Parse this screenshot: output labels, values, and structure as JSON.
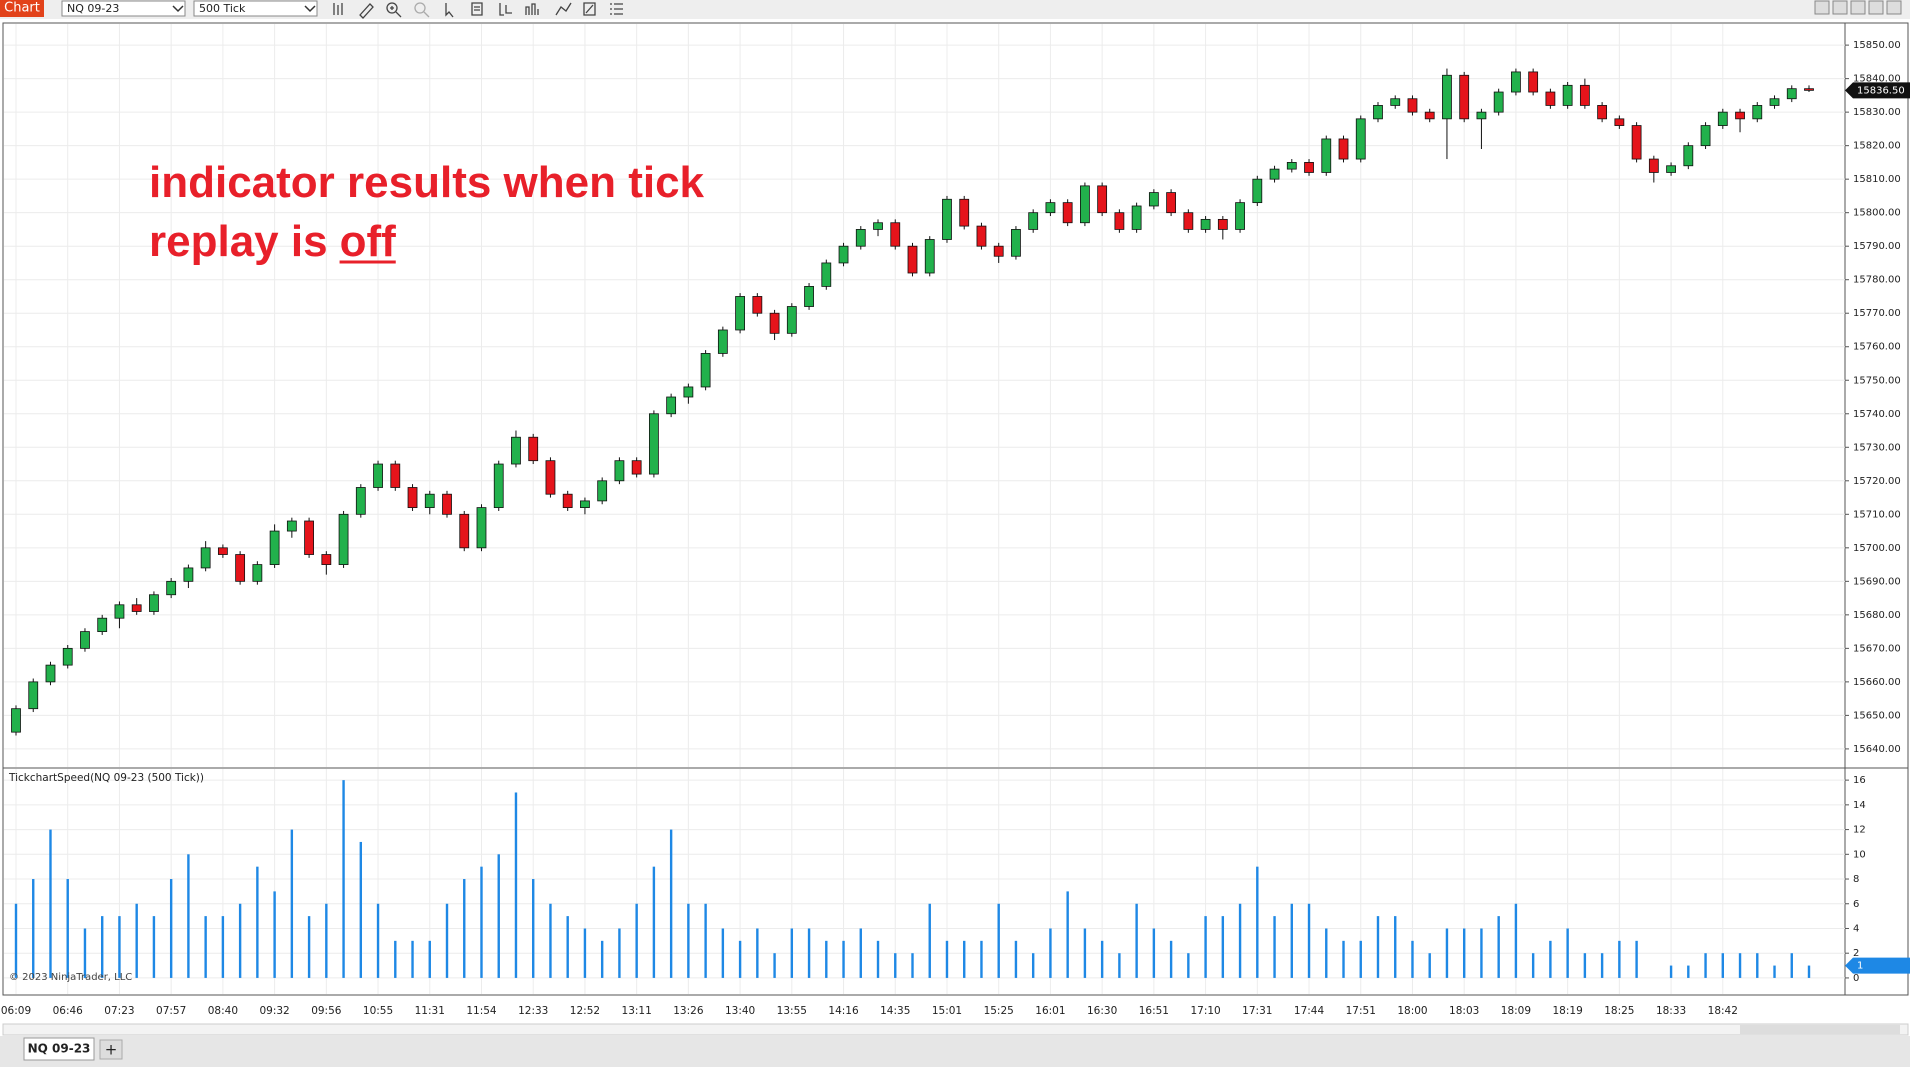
{
  "toolbar": {
    "title": "Chart",
    "instrument": "NQ 09-23",
    "interval": "500 Tick"
  },
  "chart_data": [
    {
      "type": "candlestick",
      "annotation": [
        "indicator results when tick",
        "replay is",
        "off"
      ],
      "categories": [
        "06:09",
        null,
        null,
        "06:46",
        null,
        null,
        "07:23",
        null,
        null,
        "07:57",
        null,
        null,
        "08:40",
        null,
        null,
        "09:32",
        null,
        null,
        "09:56",
        null,
        null,
        "10:55",
        null,
        null,
        "11:31",
        null,
        null,
        "11:54",
        null,
        null,
        "12:33",
        null,
        null,
        "12:52",
        null,
        null,
        "13:11",
        null,
        null,
        "13:26",
        null,
        null,
        "13:40",
        null,
        null,
        "13:55",
        null,
        null,
        "14:16",
        null,
        null,
        "14:35",
        null,
        null,
        "15:01",
        null,
        null,
        "15:25",
        null,
        null,
        "16:01",
        null,
        null,
        "16:30",
        null,
        null,
        "16:51",
        null,
        null,
        "17:10",
        null,
        null,
        "17:31",
        null,
        null,
        "17:44",
        null,
        null,
        "17:51",
        null,
        null,
        "18:00",
        null,
        null,
        "18:03",
        null,
        null,
        "18:09",
        null,
        null,
        "18:19",
        null,
        null,
        "18:25",
        null,
        null,
        "18:33",
        null,
        null,
        "18:42",
        null,
        null,
        null,
        null,
        null
      ],
      "candles": [
        [
          15645,
          15653,
          15644,
          15652
        ],
        [
          15652,
          15661,
          15651,
          15660
        ],
        [
          15660,
          15666,
          15659,
          15665
        ],
        [
          15665,
          15671,
          15664,
          15670
        ],
        [
          15670,
          15676,
          15669,
          15675
        ],
        [
          15675,
          15680,
          15674,
          15679
        ],
        [
          15679,
          15684,
          15676,
          15683
        ],
        [
          15683,
          15685,
          15680,
          15681
        ],
        [
          15681,
          15687,
          15680,
          15686
        ],
        [
          15686,
          15691,
          15685,
          15690
        ],
        [
          15690,
          15695,
          15688,
          15694
        ],
        [
          15694,
          15702,
          15693,
          15700
        ],
        [
          15700,
          15701,
          15697,
          15698
        ],
        [
          15698,
          15699,
          15689,
          15690
        ],
        [
          15690,
          15696,
          15689,
          15695
        ],
        [
          15695,
          15707,
          15694,
          15705
        ],
        [
          15705,
          15709,
          15703,
          15708
        ],
        [
          15708,
          15709,
          15697,
          15698
        ],
        [
          15698,
          15699,
          15692,
          15695
        ],
        [
          15695,
          15711,
          15694,
          15710
        ],
        [
          15710,
          15719,
          15709,
          15718
        ],
        [
          15718,
          15726,
          15717,
          15725
        ],
        [
          15725,
          15726,
          15717,
          15718
        ],
        [
          15718,
          15719,
          15711,
          15712
        ],
        [
          15712,
          15717,
          15710,
          15716
        ],
        [
          15716,
          15717,
          15709,
          15710
        ],
        [
          15710,
          15711,
          15699,
          15700
        ],
        [
          15700,
          15713,
          15699,
          15712
        ],
        [
          15712,
          15726,
          15711,
          15725
        ],
        [
          15725,
          15735,
          15724,
          15733
        ],
        [
          15733,
          15734,
          15725,
          15726
        ],
        [
          15726,
          15727,
          15715,
          15716
        ],
        [
          15716,
          15717,
          15711,
          15712
        ],
        [
          15712,
          15715,
          15710,
          15714
        ],
        [
          15714,
          15721,
          15713,
          15720
        ],
        [
          15720,
          15727,
          15719,
          15726
        ],
        [
          15726,
          15727,
          15721,
          15722
        ],
        [
          15722,
          15741,
          15721,
          15740
        ],
        [
          15740,
          15746,
          15739,
          15745
        ],
        [
          15745,
          15749,
          15743,
          15748
        ],
        [
          15748,
          15759,
          15747,
          15758
        ],
        [
          15758,
          15766,
          15757,
          15765
        ],
        [
          15765,
          15776,
          15764,
          15775
        ],
        [
          15775,
          15776,
          15769,
          15770
        ],
        [
          15770,
          15771,
          15762,
          15764
        ],
        [
          15764,
          15773,
          15763,
          15772
        ],
        [
          15772,
          15779,
          15771,
          15778
        ],
        [
          15778,
          15786,
          15777,
          15785
        ],
        [
          15785,
          15791,
          15784,
          15790
        ],
        [
          15790,
          15796,
          15789,
          15795
        ],
        [
          15795,
          15798,
          15793,
          15797
        ],
        [
          15797,
          15798,
          15789,
          15790
        ],
        [
          15790,
          15791,
          15781,
          15782
        ],
        [
          15782,
          15793,
          15781,
          15792
        ],
        [
          15792,
          15805,
          15791,
          15804
        ],
        [
          15804,
          15805,
          15795,
          15796
        ],
        [
          15796,
          15797,
          15789,
          15790
        ],
        [
          15790,
          15791,
          15785,
          15787
        ],
        [
          15787,
          15796,
          15786,
          15795
        ],
        [
          15795,
          15801,
          15794,
          15800
        ],
        [
          15800,
          15804,
          15799,
          15803
        ],
        [
          15803,
          15804,
          15796,
          15797
        ],
        [
          15797,
          15809,
          15796,
          15808
        ],
        [
          15808,
          15809,
          15799,
          15800
        ],
        [
          15800,
          15801,
          15794,
          15795
        ],
        [
          15795,
          15803,
          15794,
          15802
        ],
        [
          15802,
          15807,
          15801,
          15806
        ],
        [
          15806,
          15807,
          15799,
          15800
        ],
        [
          15800,
          15801,
          15794,
          15795
        ],
        [
          15795,
          15799,
          15794,
          15798
        ],
        [
          15798,
          15799,
          15792,
          15795
        ],
        [
          15795,
          15804,
          15794,
          15803
        ],
        [
          15803,
          15811,
          15802,
          15810
        ],
        [
          15810,
          15814,
          15809,
          15813
        ],
        [
          15813,
          15816,
          15812,
          15815
        ],
        [
          15815,
          15816,
          15811,
          15812
        ],
        [
          15812,
          15823,
          15811,
          15822
        ],
        [
          15822,
          15823,
          15815,
          15816
        ],
        [
          15816,
          15829,
          15815,
          15828
        ],
        [
          15828,
          15833,
          15827,
          15832
        ],
        [
          15832,
          15835,
          15831,
          15834
        ],
        [
          15834,
          15835,
          15829,
          15830
        ],
        [
          15830,
          15831,
          15827,
          15828
        ],
        [
          15828,
          15843,
          15816,
          15841
        ],
        [
          15841,
          15842,
          15827,
          15828
        ],
        [
          15828,
          15831,
          15819,
          15830
        ],
        [
          15830,
          15837,
          15829,
          15836
        ],
        [
          15836,
          15843,
          15835,
          15842
        ],
        [
          15842,
          15843,
          15835,
          15836
        ],
        [
          15836,
          15837,
          15831,
          15832
        ],
        [
          15832,
          15839,
          15831,
          15838
        ],
        [
          15838,
          15840,
          15831,
          15832
        ],
        [
          15832,
          15833,
          15827,
          15828
        ],
        [
          15828,
          15829,
          15825,
          15826
        ],
        [
          15826,
          15827,
          15815,
          15816
        ],
        [
          15816,
          15817,
          15809,
          15812
        ],
        [
          15812,
          15815,
          15811,
          15814
        ],
        [
          15814,
          15821,
          15813,
          15820
        ],
        [
          15820,
          15827,
          15819,
          15826
        ],
        [
          15826,
          15831,
          15825,
          15830
        ],
        [
          15830,
          15831,
          15824,
          15828
        ],
        [
          15828,
          15833,
          15827,
          15832
        ],
        [
          15832,
          15835,
          15831,
          15834
        ],
        [
          15834,
          15838,
          15833,
          15837
        ],
        [
          15837,
          15838,
          15836,
          15836.5
        ]
      ],
      "last_label": "15836.50",
      "up_color": "#22b14c",
      "down_color": "#e5141b",
      "ylim": [
        15634.6,
        15856.3
      ],
      "yticks": [
        {
          "value": 15640,
          "label": "15640.00"
        },
        {
          "value": 15650,
          "label": "15650.00"
        },
        {
          "value": 15660,
          "label": "15660.00"
        },
        {
          "value": 15670,
          "label": "15670.00"
        },
        {
          "value": 15680,
          "label": "15680.00"
        },
        {
          "value": 15690,
          "label": "15690.00"
        },
        {
          "value": 15700,
          "label": "15700.00"
        },
        {
          "value": 15710,
          "label": "15710.00"
        },
        {
          "value": 15720,
          "label": "15720.00"
        },
        {
          "value": 15730,
          "label": "15730.00"
        },
        {
          "value": 15740,
          "label": "15740.00"
        },
        {
          "value": 15750,
          "label": "15750.00"
        },
        {
          "value": 15760,
          "label": "15760.00"
        },
        {
          "value": 15770,
          "label": "15770.00"
        },
        {
          "value": 15780,
          "label": "15780.00"
        },
        {
          "value": 15790,
          "label": "15790.00"
        },
        {
          "value": 15800,
          "label": "15800.00"
        },
        {
          "value": 15810,
          "label": "15810.00"
        },
        {
          "value": 15820,
          "label": "15820.00"
        },
        {
          "value": 15830,
          "label": "15830.00"
        },
        {
          "value": 15840,
          "label": "15840.00"
        },
        {
          "value": 15850,
          "label": "15850.00"
        }
      ],
      "grid": true
    },
    {
      "type": "bar",
      "title": "TickchartSpeed(NQ 09-23 (500 Tick))",
      "values": [
        6,
        8,
        12,
        8,
        4,
        5,
        5,
        6,
        5,
        8,
        10,
        5,
        5,
        6,
        9,
        7,
        12,
        5,
        6,
        16,
        11,
        6,
        3,
        3,
        3,
        6,
        8,
        9,
        10,
        15,
        8,
        6,
        5,
        4,
        3,
        4,
        6,
        9,
        12,
        6,
        6,
        4,
        3,
        4,
        2,
        4,
        4,
        3,
        3,
        4,
        3,
        2,
        2,
        6,
        3,
        3,
        3,
        6,
        3,
        2,
        4,
        7,
        4,
        3,
        2,
        6,
        4,
        3,
        2,
        5,
        5,
        6,
        9,
        5,
        6,
        6,
        4,
        3,
        3,
        5,
        5,
        3,
        2,
        4,
        4,
        4,
        5,
        6,
        2,
        3,
        4,
        2,
        2,
        3,
        3,
        0,
        1,
        1,
        2,
        2,
        2,
        2,
        1,
        2,
        1
      ],
      "color": "#1e88e5",
      "ylim": [
        -1.3,
        16.9
      ],
      "yticks": [
        0,
        2,
        4,
        6,
        8,
        10,
        12,
        14,
        16
      ],
      "grid": true
    }
  ],
  "copyright": "© 2023 NinjaTrader, LLC",
  "tabs": [
    "NQ 09-23"
  ],
  "add_tab": "+"
}
